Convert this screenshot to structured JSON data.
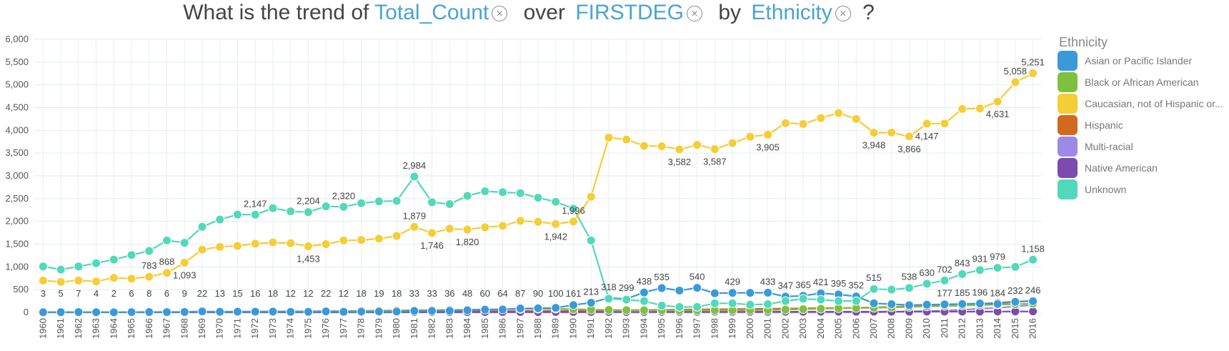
{
  "question": {
    "prefix": "What is the trend of",
    "measure": "Total_Count",
    "over": "over",
    "dimension": "FIRSTDEG",
    "by": "by",
    "group": "Ethnicity",
    "suffix": "?",
    "remove_glyph": "×"
  },
  "chart_data": {
    "type": "line",
    "x": [
      "1960",
      "1961",
      "1962",
      "1963",
      "1964",
      "1965",
      "1966",
      "1967",
      "1968",
      "1969",
      "1970",
      "1971",
      "1972",
      "1973",
      "1974",
      "1975",
      "1976",
      "1977",
      "1978",
      "1979",
      "1980",
      "1981",
      "1982",
      "1983",
      "1984",
      "1985",
      "1986",
      "1987",
      "1988",
      "1989",
      "1990",
      "1991",
      "1992",
      "1993",
      "1994",
      "1995",
      "1996",
      "1997",
      "1998",
      "1999",
      "2000",
      "2001",
      "2002",
      "2003",
      "2004",
      "2005",
      "2006",
      "2007",
      "2008",
      "2009",
      "2010",
      "2011",
      "2012",
      "2013",
      "2014",
      "2015",
      "2016"
    ],
    "ylim": [
      0,
      6000
    ],
    "yticks": [
      0,
      500,
      1000,
      1500,
      2000,
      2500,
      3000,
      3500,
      4000,
      4500,
      5000,
      5500,
      6000
    ],
    "ytick_labels": [
      "0",
      "500",
      "1,000",
      "1,500",
      "2,000",
      "2,500",
      "3,000",
      "3,500",
      "4,000",
      "4,500",
      "5,000",
      "5,500",
      "6,000"
    ],
    "grid": true,
    "legend": {
      "title": "Ethnicity",
      "position": "right"
    },
    "series": [
      {
        "name": "Asian or Pacific Islander",
        "color": "#3a9ad9",
        "values": [
          3,
          5,
          7,
          4,
          2,
          6,
          8,
          6,
          9,
          22,
          13,
          15,
          16,
          18,
          12,
          12,
          22,
          12,
          18,
          19,
          18,
          33,
          33,
          36,
          48,
          60,
          64,
          87,
          90,
          100,
          161,
          213,
          318,
          299,
          438,
          535,
          480,
          540,
          420,
          429,
          430,
          433,
          347,
          365,
          421,
          395,
          352,
          200,
          180,
          160,
          170,
          177,
          185,
          196,
          184,
          232,
          246
        ]
      },
      {
        "name": "Black or African American",
        "color": "#80c040",
        "values": [
          2,
          3,
          4,
          3,
          5,
          6,
          7,
          8,
          10,
          14,
          16,
          18,
          20,
          22,
          24,
          25,
          30,
          32,
          36,
          40,
          44,
          50,
          52,
          56,
          60,
          64,
          70,
          75,
          78,
          80,
          70,
          60,
          55,
          50,
          48,
          45,
          44,
          44,
          45,
          48,
          50,
          52,
          60,
          70,
          80,
          90,
          95,
          100,
          110,
          120,
          130,
          140,
          150,
          160,
          170,
          180,
          190
        ]
      },
      {
        "name": "Caucasian, not of Hispanic or...",
        "color": "#f5cd35",
        "values": [
          700,
          670,
          700,
          680,
          760,
          740,
          783,
          868,
          1093,
          1380,
          1440,
          1460,
          1510,
          1540,
          1520,
          1453,
          1500,
          1580,
          1590,
          1620,
          1680,
          1879,
          1746,
          1840,
          1820,
          1870,
          1900,
          2010,
          1990,
          1942,
          1996,
          2540,
          3840,
          3800,
          3660,
          3650,
          3582,
          3680,
          3587,
          3720,
          3860,
          3905,
          4160,
          4140,
          4270,
          4380,
          4250,
          3948,
          3950,
          3866,
          4147,
          4150,
          4470,
          4480,
          4631,
          5058,
          5251
        ]
      },
      {
        "name": "Hispanic",
        "color": "#d2691e",
        "values": [
          1,
          1,
          2,
          2,
          2,
          3,
          3,
          4,
          4,
          5,
          6,
          6,
          7,
          8,
          9,
          10,
          11,
          12,
          14,
          15,
          16,
          18,
          20,
          22,
          24,
          26,
          28,
          30,
          32,
          34,
          36,
          40,
          44,
          48,
          52,
          56,
          60,
          64,
          68,
          72,
          76,
          80,
          84,
          88,
          92,
          96,
          100,
          110,
          120,
          130,
          140,
          150,
          170,
          190,
          210,
          240,
          250
        ]
      },
      {
        "name": "Multi-racial",
        "color": "#9b8ae6",
        "values": [
          0,
          0,
          0,
          0,
          0,
          0,
          0,
          0,
          0,
          0,
          0,
          0,
          0,
          0,
          0,
          0,
          0,
          0,
          0,
          0,
          0,
          0,
          0,
          0,
          0,
          0,
          0,
          0,
          0,
          0,
          0,
          0,
          0,
          0,
          0,
          0,
          0,
          0,
          0,
          0,
          0,
          0,
          0,
          0,
          0,
          0,
          0,
          0,
          10,
          20,
          30,
          40,
          60,
          80,
          100,
          130,
          160
        ]
      },
      {
        "name": "Native American",
        "color": "#7b4bb0",
        "values": [
          1,
          1,
          1,
          1,
          2,
          2,
          2,
          2,
          3,
          3,
          3,
          4,
          4,
          4,
          5,
          5,
          5,
          6,
          6,
          6,
          7,
          7,
          7,
          8,
          8,
          8,
          9,
          9,
          9,
          10,
          10,
          10,
          11,
          11,
          11,
          12,
          12,
          12,
          13,
          13,
          13,
          14,
          14,
          14,
          15,
          15,
          15,
          16,
          16,
          16,
          17,
          17,
          18,
          18,
          19,
          20,
          21
        ]
      },
      {
        "name": "Unknown",
        "color": "#52d8ba",
        "values": [
          1010,
          940,
          1010,
          1080,
          1160,
          1260,
          1350,
          1580,
          1530,
          1880,
          2040,
          2150,
          2147,
          2290,
          2220,
          2204,
          2330,
          2320,
          2400,
          2440,
          2450,
          2984,
          2420,
          2380,
          2560,
          2660,
          2640,
          2620,
          2520,
          2430,
          2280,
          1580,
          300,
          280,
          250,
          150,
          120,
          120,
          200,
          200,
          170,
          180,
          250,
          300,
          280,
          250,
          250,
          515,
          500,
          538,
          630,
          702,
          843,
          931,
          979,
          1000,
          1158
        ]
      }
    ],
    "data_labels": {
      "Asian or Pacific Islander": [
        [
          "1960",
          3
        ],
        [
          "1961",
          5
        ],
        [
          "1962",
          7
        ],
        [
          "1963",
          4
        ],
        [
          "1964",
          2
        ],
        [
          "1965",
          6
        ],
        [
          "1966",
          8
        ],
        [
          "1967",
          6
        ],
        [
          "1968",
          9
        ],
        [
          "1969",
          22
        ],
        [
          "1970",
          13
        ],
        [
          "1971",
          15
        ],
        [
          "1972",
          16
        ],
        [
          "1973",
          18
        ],
        [
          "1974",
          12
        ],
        [
          "1975",
          12
        ],
        [
          "1976",
          22
        ],
        [
          "1977",
          12
        ],
        [
          "1978",
          18
        ],
        [
          "1979",
          19
        ],
        [
          "1980",
          18
        ],
        [
          "1981",
          33
        ],
        [
          "1982",
          33
        ],
        [
          "1983",
          36
        ],
        [
          "1984",
          48
        ],
        [
          "1985",
          60
        ],
        [
          "1986",
          64
        ],
        [
          "1987",
          87
        ],
        [
          "1988",
          90
        ],
        [
          "1989",
          100
        ],
        [
          "1990",
          161
        ],
        [
          "1991",
          213
        ],
        [
          "1992",
          318
        ],
        [
          "1993",
          299
        ],
        [
          "1994",
          438
        ],
        [
          "1995",
          535
        ],
        [
          "1997",
          540
        ],
        [
          "1999",
          429
        ],
        [
          "2001",
          433
        ],
        [
          "2002",
          347
        ],
        [
          "2003",
          365
        ],
        [
          "2004",
          421
        ],
        [
          "2005",
          395
        ],
        [
          "2006",
          352
        ],
        [
          "2011",
          177
        ],
        [
          "2012",
          185
        ],
        [
          "2013",
          196
        ],
        [
          "2014",
          184
        ],
        [
          "2015",
          232
        ],
        [
          "2016",
          246
        ]
      ],
      "Caucasian, not of Hispanic or...": [
        [
          "1966",
          783
        ],
        [
          "1967",
          868
        ],
        [
          "1968",
          1093
        ],
        [
          "1975",
          1453
        ],
        [
          "1981",
          1879
        ],
        [
          "1982",
          1746
        ],
        [
          "1984",
          1820
        ],
        [
          "1989",
          1942
        ],
        [
          "1990",
          1996
        ],
        [
          "1996",
          3582
        ],
        [
          "1998",
          3587
        ],
        [
          "2001",
          3905
        ],
        [
          "2007",
          3948
        ],
        [
          "2009",
          3866
        ],
        [
          "2010",
          4147
        ],
        [
          "2014",
          4631
        ],
        [
          "2015",
          5058
        ],
        [
          "2016",
          5251
        ]
      ],
      "Unknown": [
        [
          "1972",
          2147
        ],
        [
          "1975",
          2204
        ],
        [
          "1977",
          2320
        ],
        [
          "1981",
          2984
        ],
        [
          "2007",
          515
        ],
        [
          "2009",
          538
        ],
        [
          "2010",
          630
        ],
        [
          "2011",
          702
        ],
        [
          "2012",
          843
        ],
        [
          "2013",
          931
        ],
        [
          "2014",
          979
        ],
        [
          "2016",
          1158
        ]
      ]
    }
  }
}
